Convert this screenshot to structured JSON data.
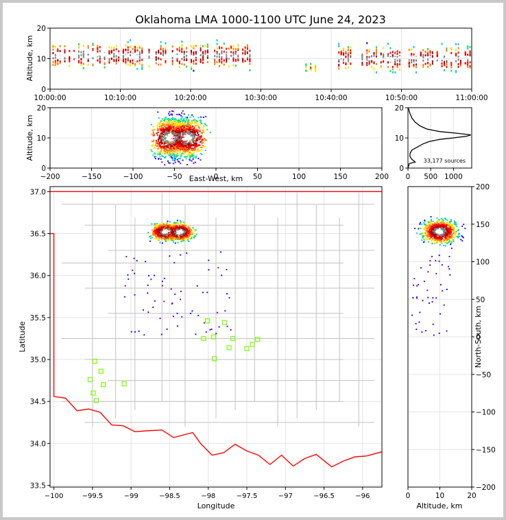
{
  "title": "Oklahoma LMA 1000-1100 UTC June 24, 2023",
  "colors": {
    "state_border": "#ff0000",
    "county_lines": "#c0c0c0",
    "station_marker": "#7cfc00",
    "histogram_line": "#000000",
    "density_scale": [
      "#6a00c8",
      "#1010ff",
      "#00c8ff",
      "#00e060",
      "#ffe000",
      "#ff7f00",
      "#ff0000",
      "#b00000",
      "#808080",
      "#ffffff"
    ]
  },
  "chart_data": [
    {
      "id": "time_height",
      "type": "heatmap",
      "xlabel": "",
      "ylabel": "Altitude, km",
      "x_ticks": [
        "10:00:00",
        "10:10:00",
        "10:20:00",
        "10:30:00",
        "10:40:00",
        "10:50:00",
        "11:00:00"
      ],
      "xlim": [
        "10:00:00",
        "11:00:00"
      ],
      "ylim": [
        0,
        20
      ],
      "y_ticks": [
        0,
        10,
        20
      ],
      "source_activity": [
        {
          "start": "10:00:00",
          "end": "10:29:00",
          "alt_center": 11,
          "alt_spread": 4,
          "level": "high"
        },
        {
          "start": "10:36:00",
          "end": "10:40:00",
          "alt_center": 7,
          "alt_spread": 2,
          "level": "low"
        },
        {
          "start": "10:41:00",
          "end": "11:00:00",
          "alt_center": 10,
          "alt_spread": 4,
          "level": "high"
        }
      ]
    },
    {
      "id": "east_west_altitude",
      "type": "heatmap",
      "xlabel": "East-West, km",
      "ylabel": "Altitude, km",
      "xlim": [
        -200,
        200
      ],
      "ylim": [
        0,
        20
      ],
      "x_ticks": [
        -200,
        -150,
        -100,
        -50,
        0,
        50,
        100,
        150,
        200
      ],
      "y_ticks": [
        0,
        10,
        20
      ],
      "cores": [
        {
          "x": -55,
          "alt": 10
        },
        {
          "x": -35,
          "alt": 10
        }
      ]
    },
    {
      "id": "altitude_histogram",
      "type": "line",
      "xlim": [
        0,
        1400
      ],
      "ylim": [
        0,
        20
      ],
      "x_ticks": [
        0,
        500,
        1000
      ],
      "y_ticks": [
        0,
        10,
        20
      ],
      "annotation": "33,177 sources",
      "points": [
        [
          0,
          0
        ],
        [
          30,
          1.5
        ],
        [
          160,
          2
        ],
        [
          80,
          3
        ],
        [
          40,
          4
        ],
        [
          50,
          5
        ],
        [
          90,
          6
        ],
        [
          210,
          7
        ],
        [
          330,
          8
        ],
        [
          470,
          8.8
        ],
        [
          700,
          9.5
        ],
        [
          1000,
          10
        ],
        [
          1300,
          10.6
        ],
        [
          1380,
          11
        ],
        [
          1100,
          11.5
        ],
        [
          700,
          12.1
        ],
        [
          420,
          12.9
        ],
        [
          260,
          14
        ],
        [
          160,
          15.2
        ],
        [
          90,
          16.5
        ],
        [
          45,
          18
        ],
        [
          15,
          19.5
        ],
        [
          0,
          20
        ]
      ]
    },
    {
      "id": "plan_view",
      "type": "scatter",
      "xlabel": "Longitude",
      "ylabel": "Latitude",
      "xlim": [
        -100.05,
        -95.75
      ],
      "ylim": [
        33.48,
        37.06
      ],
      "x_ticks": [
        -100.0,
        -99.5,
        -99.0,
        -98.5,
        -98.0,
        -97.5,
        -97.0,
        -96.5,
        -96.0
      ],
      "y_ticks": [
        33.5,
        34.0,
        34.5,
        35.0,
        35.5,
        36.0,
        36.5,
        37.0
      ],
      "cores": [
        {
          "lon": -98.55,
          "lat": 36.52
        },
        {
          "lon": -98.38,
          "lat": 36.52
        }
      ],
      "stations": [
        [
          -98.01,
          35.46
        ],
        [
          -97.79,
          35.44
        ],
        [
          -98.06,
          35.25
        ],
        [
          -97.93,
          35.27
        ],
        [
          -97.68,
          35.25
        ],
        [
          -97.36,
          35.24
        ],
        [
          -97.73,
          35.14
        ],
        [
          -97.5,
          35.13
        ],
        [
          -97.43,
          35.18
        ],
        [
          -97.92,
          35.01
        ],
        [
          -99.47,
          34.98
        ],
        [
          -99.39,
          34.86
        ],
        [
          -99.53,
          34.76
        ],
        [
          -99.36,
          34.7
        ],
        [
          -99.09,
          34.71
        ],
        [
          -99.49,
          34.6
        ],
        [
          -99.45,
          34.51
        ]
      ]
    },
    {
      "id": "altitude_north_south",
      "type": "heatmap",
      "xlabel": "Altitude, km",
      "ylabel": "North-South, km",
      "xlim": [
        0,
        20
      ],
      "ylim": [
        -200,
        200
      ],
      "x_ticks": [
        0,
        10,
        20
      ],
      "y_ticks": [
        -200,
        -150,
        -100,
        -50,
        0,
        50,
        100,
        150,
        200
      ],
      "cores": [
        {
          "alt": 10,
          "y": 140
        }
      ]
    }
  ]
}
